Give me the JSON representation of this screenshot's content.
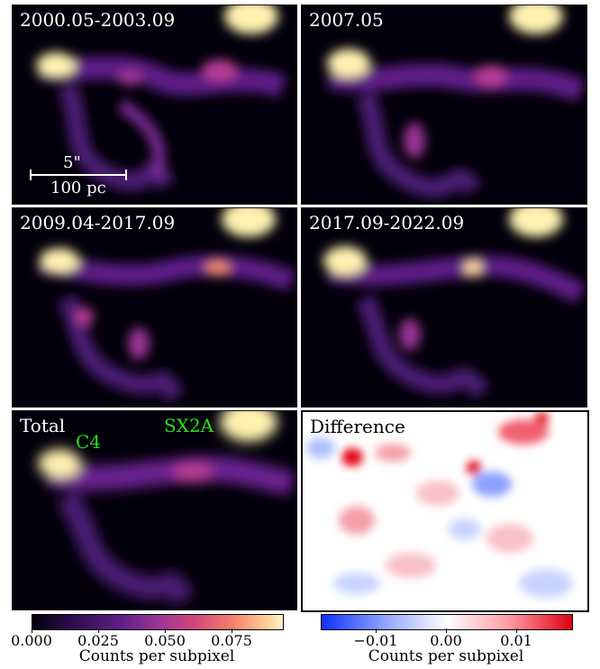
{
  "panels": [
    {
      "id": "p1",
      "label": "2000.05-2003.09"
    },
    {
      "id": "p2",
      "label": "2007.05"
    },
    {
      "id": "p3",
      "label": "2009.04-2017.09"
    },
    {
      "id": "p4",
      "label": "2017.09-2022.09"
    },
    {
      "id": "p5",
      "label": "Total",
      "sources": [
        "C4",
        "SX2A"
      ]
    },
    {
      "id": "p6",
      "label": "Difference"
    }
  ],
  "scalebar": {
    "angular": "5\"",
    "physical": "100 pc"
  },
  "colorbars": [
    {
      "id": "counts",
      "ticks": [
        "0.000",
        "0.025",
        "0.050",
        "0.075"
      ],
      "label": "Counts per subpixel"
    },
    {
      "id": "diff",
      "ticks": [
        "−0.01",
        "0.00",
        "0.01"
      ],
      "label": "Counts per subpixel"
    }
  ],
  "colors": {
    "source_label": "#26e01a",
    "map_bg": "#02000a",
    "map_hot": "#fff2b0",
    "diff_pos": "#e00010",
    "diff_neg": "#1a3cff"
  }
}
